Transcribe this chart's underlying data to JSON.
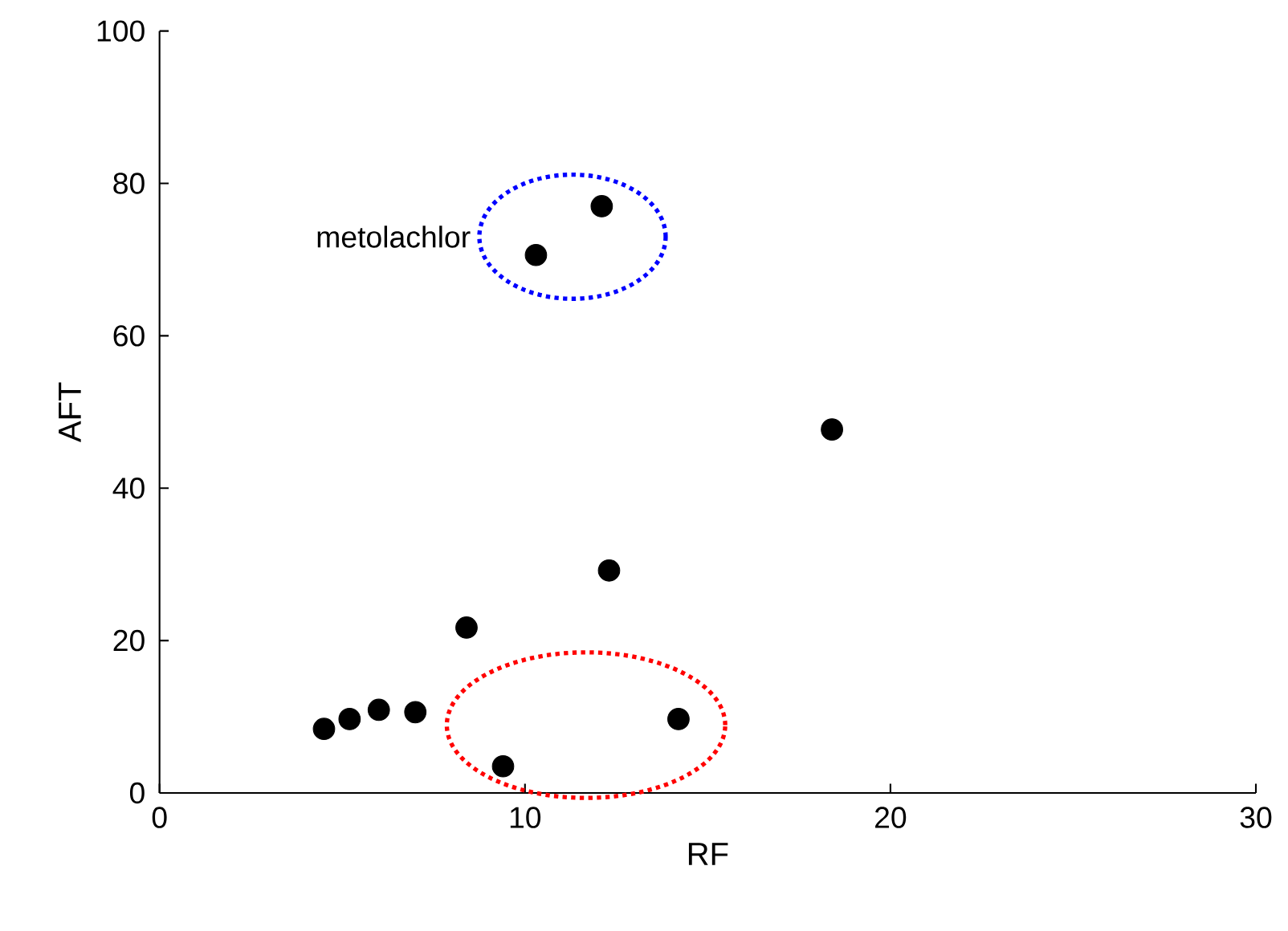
{
  "chart_data": {
    "type": "scatter",
    "xlabel": "RF",
    "ylabel": "AFT",
    "x": [
      4.5,
      5.2,
      6.0,
      7.0,
      8.4,
      9.4,
      10.3,
      12.1,
      12.3,
      14.2,
      18.4
    ],
    "values": [
      8.4,
      9.7,
      10.9,
      10.6,
      21.7,
      3.5,
      70.6,
      77.0,
      29.2,
      9.7,
      47.7
    ],
    "color": "#000000",
    "marker": "circle",
    "xlim": [
      0,
      30
    ],
    "xticks": [
      0,
      10,
      20,
      30
    ],
    "ylim": [
      0,
      100
    ],
    "yticks": [
      0,
      20,
      40,
      60,
      80,
      100
    ],
    "annotations": [
      "metolachlor"
    ]
  }
}
